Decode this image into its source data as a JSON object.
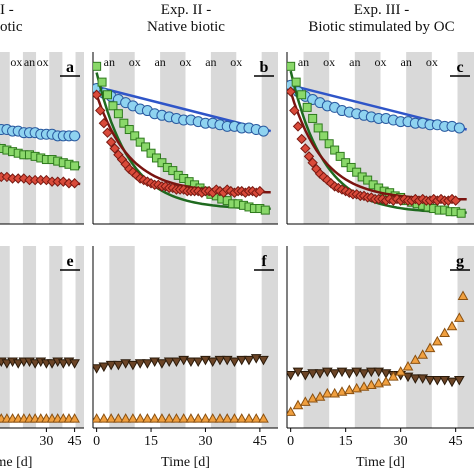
{
  "headers": {
    "exp1_line1": "I -",
    "exp1_line2": "otic",
    "exp2_line1": "Exp. II -",
    "exp2_line2": "Native biotic",
    "exp3_line1": "Exp. III -",
    "exp3_line2": "Biotic stimulated by OC"
  },
  "colors": {
    "band": "#d9d9d9",
    "blue_fill": "#8fd3f0",
    "blue_stroke": "#2a5aa0",
    "blue_line": "#2f55c8",
    "green_fill": "#8ad86a",
    "green_stroke": "#2f7a1e",
    "green_line": "#1f6a1f",
    "red_fill": "#d94a3a",
    "red_stroke": "#7a1a12",
    "red_line": "#7a1410",
    "brown_fill": "#6b4426",
    "orange_fill": "#f0a040",
    "orange_stroke": "#8a5010"
  },
  "chart_data": [
    {
      "panel": "a",
      "type": "scatter",
      "experiment": "Exp. I",
      "phases": [
        "an",
        "ox",
        "an",
        "ox"
      ],
      "x_ticks": [],
      "xlim": [
        0,
        50
      ],
      "series": [
        {
          "marker": "circle",
          "color": "blue",
          "x": [
            0,
            3,
            6,
            9,
            12,
            15,
            18,
            21,
            24,
            27,
            30,
            33,
            36,
            39,
            42,
            45
          ],
          "y": [
            0.57,
            0.57,
            0.56,
            0.56,
            0.55,
            0.55,
            0.54,
            0.54,
            0.54,
            0.53,
            0.53,
            0.53,
            0.52,
            0.52,
            0.52,
            0.52
          ],
          "fit": [
            [
              0,
              0.575
            ],
            [
              48,
              0.515
            ]
          ]
        },
        {
          "marker": "square",
          "color": "green",
          "x": [
            0,
            3,
            6,
            9,
            12,
            15,
            18,
            21,
            24,
            27,
            30,
            33,
            36,
            39,
            42,
            45
          ],
          "y": [
            0.46,
            0.45,
            0.44,
            0.43,
            0.42,
            0.41,
            0.4,
            0.4,
            0.39,
            0.38,
            0.37,
            0.37,
            0.36,
            0.35,
            0.34,
            0.33
          ],
          "fit": [
            [
              0,
              0.465
            ],
            [
              48,
              0.32
            ]
          ]
        },
        {
          "marker": "diamond",
          "color": "red",
          "x": [
            0,
            3,
            6,
            9,
            12,
            15,
            18,
            21,
            24,
            27,
            30,
            33,
            36,
            39,
            42,
            45
          ],
          "y": [
            0.27,
            0.27,
            0.26,
            0.26,
            0.25,
            0.25,
            0.25,
            0.24,
            0.24,
            0.24,
            0.24,
            0.23,
            0.23,
            0.23,
            0.22,
            0.22
          ],
          "fit": [
            [
              0,
              0.275
            ],
            [
              48,
              0.215
            ]
          ]
        }
      ]
    },
    {
      "panel": "b",
      "type": "scatter",
      "experiment": "Exp. II",
      "phases": [
        "an",
        "ox",
        "an",
        "ox",
        "an",
        "ox"
      ],
      "x_ticks": [],
      "xlim": [
        -1,
        50
      ],
      "series": [
        {
          "marker": "circle",
          "color": "blue",
          "x": [
            0,
            2,
            4,
            6,
            8,
            10,
            12,
            14,
            16,
            18,
            20,
            22,
            24,
            26,
            28,
            30,
            32,
            34,
            36,
            38,
            40,
            42,
            44,
            46
          ],
          "y": [
            0.82,
            0.79,
            0.77,
            0.75,
            0.73,
            0.71,
            0.69,
            0.68,
            0.66,
            0.65,
            0.64,
            0.63,
            0.62,
            0.62,
            0.61,
            0.6,
            0.6,
            0.59,
            0.58,
            0.58,
            0.57,
            0.57,
            0.56,
            0.55
          ],
          "fit": [
            [
              0,
              0.83
            ],
            [
              48,
              0.55
            ]
          ]
        },
        {
          "marker": "square",
          "color": "green",
          "x": [
            0,
            1.5,
            3,
            4.5,
            6,
            7.5,
            9,
            10.5,
            12,
            13.5,
            15,
            16.5,
            18,
            19.5,
            21,
            22.5,
            24,
            25.5,
            27,
            28.5,
            30,
            31.5,
            33,
            34.5,
            36,
            37.5,
            39,
            40.5,
            42,
            43.5,
            45,
            46.5
          ],
          "y": [
            0.96,
            0.86,
            0.78,
            0.71,
            0.66,
            0.6,
            0.56,
            0.52,
            0.48,
            0.45,
            0.41,
            0.38,
            0.35,
            0.32,
            0.3,
            0.27,
            0.25,
            0.23,
            0.21,
            0.19,
            0.17,
            0.15,
            0.14,
            0.12,
            0.11,
            0.09,
            0.09,
            0.08,
            0.07,
            0.06,
            0.06,
            0.05
          ],
          "fit": "exp:0.92,0.055"
        },
        {
          "marker": "diamond",
          "color": "red",
          "x": [
            0,
            1,
            2,
            3,
            4,
            5,
            6,
            7,
            8,
            9,
            10,
            11,
            12,
            13,
            14,
            15,
            16,
            17,
            18,
            19,
            20,
            21,
            22,
            23,
            24,
            25,
            26,
            27,
            28,
            29,
            30,
            31,
            32,
            33,
            34,
            35,
            36,
            37,
            38,
            39,
            40,
            41,
            42,
            43,
            44,
            45
          ],
          "y": [
            0.78,
            0.68,
            0.6,
            0.54,
            0.48,
            0.44,
            0.4,
            0.37,
            0.34,
            0.31,
            0.29,
            0.27,
            0.25,
            0.24,
            0.23,
            0.22,
            0.21,
            0.21,
            0.2,
            0.2,
            0.19,
            0.19,
            0.18,
            0.18,
            0.18,
            0.17,
            0.17,
            0.17,
            0.17,
            0.16,
            0.17,
            0.17,
            0.16,
            0.18,
            0.17,
            0.16,
            0.18,
            0.17,
            0.16,
            0.17,
            0.17,
            0.16,
            0.17,
            0.17,
            0.16,
            0.17
          ],
          "fit": "exp:0.78,0.16"
        }
      ]
    },
    {
      "panel": "c",
      "type": "scatter",
      "experiment": "Exp. III",
      "phases": [
        "an",
        "ox",
        "an",
        "ox",
        "an",
        "ox"
      ],
      "x_ticks": [],
      "xlim": [
        -1,
        50
      ],
      "series": [
        {
          "marker": "circle",
          "color": "blue",
          "x": [
            0,
            2,
            4,
            6,
            8,
            10,
            12,
            14,
            16,
            18,
            20,
            22,
            24,
            26,
            28,
            30,
            32,
            34,
            36,
            38,
            40,
            42,
            44,
            46
          ],
          "y": [
            0.84,
            0.8,
            0.77,
            0.75,
            0.73,
            0.71,
            0.7,
            0.68,
            0.67,
            0.66,
            0.65,
            0.64,
            0.63,
            0.63,
            0.62,
            0.61,
            0.61,
            0.6,
            0.6,
            0.59,
            0.59,
            0.58,
            0.58,
            0.57
          ],
          "fit": [
            [
              0,
              0.84
            ],
            [
              48,
              0.56
            ]
          ]
        },
        {
          "marker": "square",
          "color": "green",
          "x": [
            0,
            1.5,
            3,
            4.5,
            6,
            7.5,
            9,
            10.5,
            12,
            13.5,
            15,
            16.5,
            18,
            19.5,
            21,
            22.5,
            24,
            25.5,
            27,
            28.5,
            30,
            31.5,
            33,
            34.5,
            36,
            37.5,
            39,
            40.5,
            42,
            43.5,
            45,
            46.5
          ],
          "y": [
            0.96,
            0.86,
            0.78,
            0.7,
            0.63,
            0.57,
            0.52,
            0.47,
            0.43,
            0.39,
            0.35,
            0.32,
            0.29,
            0.26,
            0.24,
            0.21,
            0.19,
            0.17,
            0.16,
            0.14,
            0.13,
            0.11,
            0.1,
            0.09,
            0.08,
            0.07,
            0.06,
            0.05,
            0.05,
            0.04,
            0.04,
            0.03
          ],
          "fit": "exp:0.93,0.03"
        },
        {
          "marker": "diamond",
          "color": "red",
          "x": [
            0,
            1,
            2,
            3,
            4,
            5,
            6,
            7,
            8,
            9,
            10,
            11,
            12,
            13,
            14,
            15,
            16,
            17,
            18,
            19,
            20,
            21,
            22,
            23,
            24,
            25,
            26,
            27,
            28,
            29,
            30,
            31,
            32,
            33,
            34,
            35,
            36,
            37,
            38,
            39,
            40,
            41,
            42,
            43,
            44,
            45
          ],
          "y": [
            0.8,
            0.68,
            0.58,
            0.5,
            0.44,
            0.39,
            0.35,
            0.31,
            0.28,
            0.26,
            0.24,
            0.22,
            0.2,
            0.19,
            0.18,
            0.17,
            0.16,
            0.15,
            0.15,
            0.14,
            0.14,
            0.13,
            0.13,
            0.12,
            0.12,
            0.12,
            0.11,
            0.12,
            0.11,
            0.12,
            0.11,
            0.12,
            0.11,
            0.11,
            0.12,
            0.11,
            0.12,
            0.11,
            0.11,
            0.12,
            0.11,
            0.12,
            0.11,
            0.11,
            0.12,
            0.11
          ],
          "fit": "exp:0.80,0.115"
        }
      ]
    },
    {
      "panel": "e",
      "type": "scatter",
      "experiment": "Exp. I",
      "x_ticks": [
        30,
        45
      ],
      "xlabel": "me [d]",
      "xlim": [
        0,
        50
      ],
      "series": [
        {
          "marker": "triangle-down",
          "color": "brown",
          "x": [
            0,
            3,
            6,
            9,
            12,
            15,
            18,
            21,
            24,
            27,
            30,
            33,
            36,
            39,
            42,
            45
          ],
          "y": [
            0.35,
            0.35,
            0.36,
            0.35,
            0.36,
            0.35,
            0.36,
            0.36,
            0.35,
            0.36,
            0.35,
            0.35,
            0.36,
            0.35,
            0.36,
            0.35
          ]
        },
        {
          "marker": "triangle-up",
          "color": "orange",
          "x": [
            0,
            3,
            6,
            9,
            12,
            15,
            18,
            21,
            24,
            27,
            30,
            33,
            36,
            39,
            42,
            45
          ],
          "y": [
            0.02,
            0.02,
            0.02,
            0.02,
            0.02,
            0.02,
            0.02,
            0.02,
            0.02,
            0.02,
            0.02,
            0.02,
            0.02,
            0.02,
            0.02,
            0.02
          ]
        }
      ]
    },
    {
      "panel": "f",
      "type": "scatter",
      "experiment": "Exp. II",
      "x_ticks": [
        0,
        15,
        30,
        45
      ],
      "xlabel": "Time [d]",
      "xlim": [
        -1,
        50
      ],
      "series": [
        {
          "marker": "triangle-down",
          "color": "brown",
          "x": [
            0,
            2,
            4,
            6,
            8,
            10,
            12,
            14,
            16,
            18,
            20,
            22,
            24,
            26,
            28,
            30,
            32,
            34,
            36,
            38,
            40,
            42,
            44,
            46
          ],
          "y": [
            0.32,
            0.33,
            0.34,
            0.34,
            0.35,
            0.34,
            0.35,
            0.35,
            0.36,
            0.35,
            0.36,
            0.36,
            0.37,
            0.36,
            0.36,
            0.37,
            0.36,
            0.37,
            0.37,
            0.36,
            0.37,
            0.37,
            0.38,
            0.37
          ]
        },
        {
          "marker": "triangle-up",
          "color": "orange",
          "x": [
            0,
            2,
            4,
            6,
            8,
            10,
            12,
            14,
            16,
            18,
            20,
            22,
            24,
            26,
            28,
            30,
            32,
            34,
            36,
            38,
            40,
            42,
            44,
            46
          ],
          "y": [
            0.02,
            0.02,
            0.02,
            0.02,
            0.02,
            0.02,
            0.02,
            0.02,
            0.02,
            0.02,
            0.02,
            0.02,
            0.02,
            0.02,
            0.02,
            0.02,
            0.02,
            0.02,
            0.02,
            0.02,
            0.02,
            0.02,
            0.02,
            0.02
          ]
        }
      ]
    },
    {
      "panel": "g",
      "type": "scatter",
      "experiment": "Exp. III",
      "x_ticks": [
        0,
        15,
        30,
        45
      ],
      "xlabel": "Time [d]",
      "xlim": [
        -1,
        50
      ],
      "series": [
        {
          "marker": "triangle-down",
          "color": "brown",
          "x": [
            0,
            2,
            4,
            6,
            8,
            10,
            12,
            14,
            16,
            18,
            20,
            22,
            24,
            26,
            28,
            30,
            32,
            34,
            36,
            38,
            40,
            42,
            44,
            46
          ],
          "y": [
            0.28,
            0.3,
            0.28,
            0.29,
            0.29,
            0.3,
            0.29,
            0.3,
            0.29,
            0.3,
            0.29,
            0.3,
            0.3,
            0.29,
            0.28,
            0.28,
            0.27,
            0.26,
            0.26,
            0.25,
            0.25,
            0.25,
            0.24,
            0.25
          ]
        },
        {
          "marker": "triangle-up",
          "color": "orange",
          "x": [
            0,
            2,
            4,
            6,
            8,
            10,
            12,
            14,
            16,
            18,
            20,
            22,
            24,
            26,
            28,
            30,
            32,
            34,
            36,
            38,
            40,
            42,
            44,
            46,
            47
          ],
          "y": [
            0.06,
            0.1,
            0.12,
            0.14,
            0.15,
            0.17,
            0.17,
            0.18,
            0.19,
            0.2,
            0.21,
            0.22,
            0.23,
            0.24,
            0.27,
            0.3,
            0.33,
            0.37,
            0.4,
            0.44,
            0.48,
            0.53,
            0.57,
            0.62,
            0.75
          ]
        }
      ]
    }
  ]
}
